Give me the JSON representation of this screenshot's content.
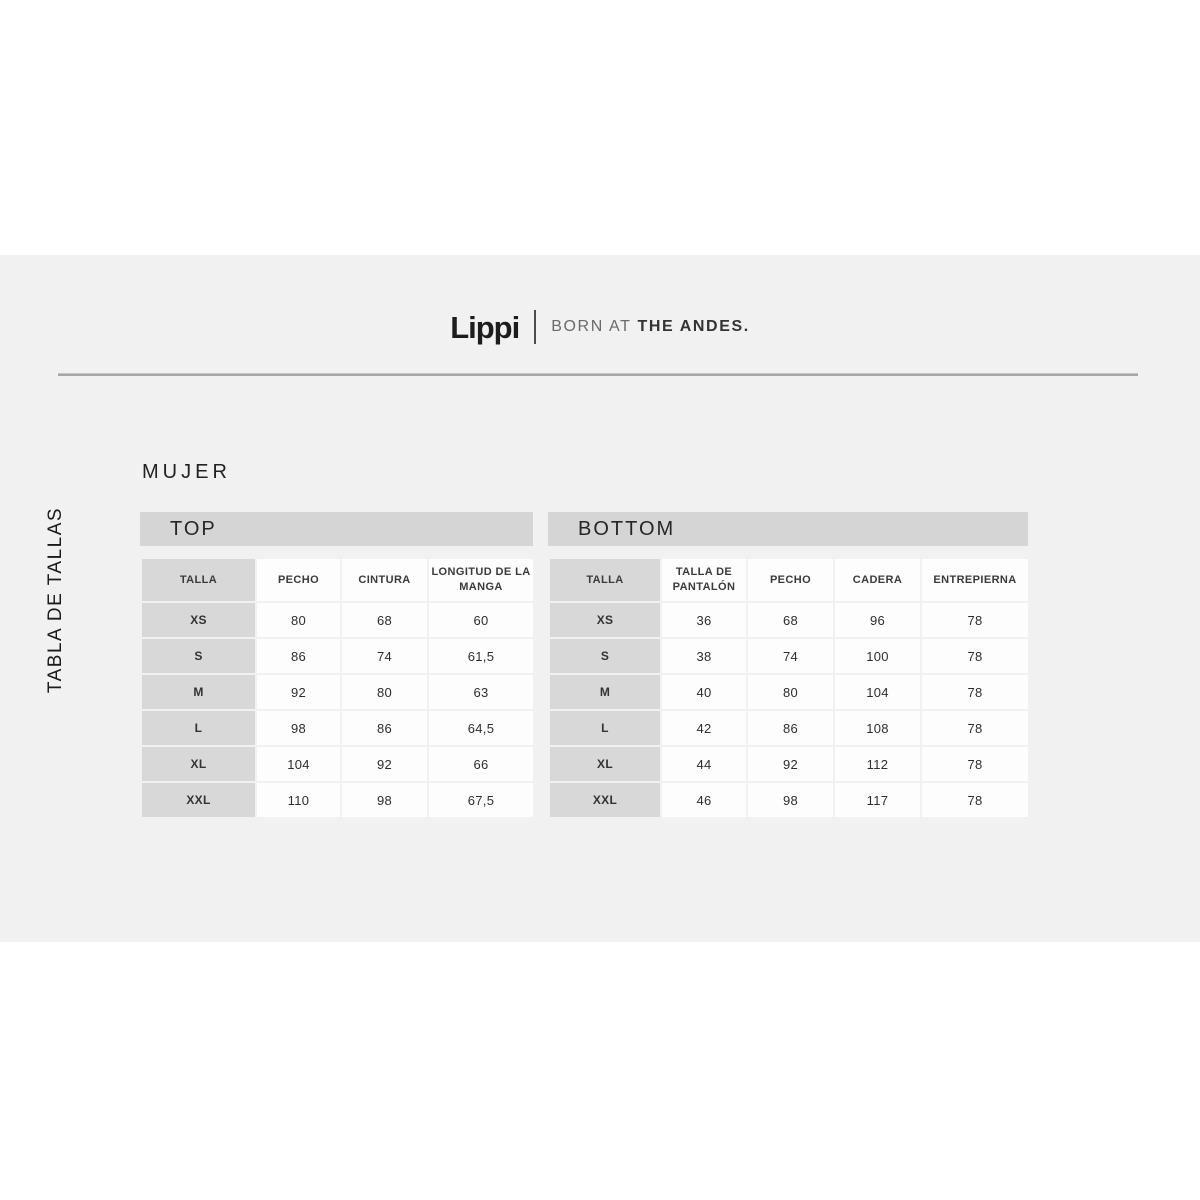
{
  "brand": {
    "logo_text": "Lippi",
    "tagline_light": "BORN AT",
    "tagline_bold": "THE ANDES."
  },
  "sidebar_label": "TABLA DE TALLAS",
  "section_title": "MUJER",
  "tables": [
    {
      "title": "TOP",
      "columns": [
        "TALLA",
        "PECHO",
        "CINTURA",
        "LONGITUD DE LA MANGA"
      ],
      "rows": [
        [
          "XS",
          "80",
          "68",
          "60"
        ],
        [
          "S",
          "86",
          "74",
          "61,5"
        ],
        [
          "M",
          "92",
          "80",
          "63"
        ],
        [
          "L",
          "98",
          "86",
          "64,5"
        ],
        [
          "XL",
          "104",
          "92",
          "66"
        ],
        [
          "XXL",
          "110",
          "98",
          "67,5"
        ]
      ]
    },
    {
      "title": "BOTTOM",
      "columns": [
        "TALLA",
        "TALLA DE PANTALÓN",
        "PECHO",
        "CADERA",
        "ENTREPIERNA"
      ],
      "rows": [
        [
          "XS",
          "36",
          "68",
          "96",
          "78"
        ],
        [
          "S",
          "38",
          "74",
          "100",
          "78"
        ],
        [
          "M",
          "40",
          "80",
          "104",
          "78"
        ],
        [
          "L",
          "42",
          "86",
          "108",
          "78"
        ],
        [
          "XL",
          "44",
          "92",
          "112",
          "78"
        ],
        [
          "XXL",
          "46",
          "98",
          "117",
          "78"
        ]
      ]
    }
  ],
  "colors": {
    "band_background": "#f1f1f1",
    "header_bar": "#d5d5d5",
    "size_column": "#d8d8d8",
    "cell_background": "#fdfdfd",
    "rule_line": "#a6a6a6",
    "text_dark": "#2d2d2d",
    "tagline_light": "#6a6a6a"
  }
}
